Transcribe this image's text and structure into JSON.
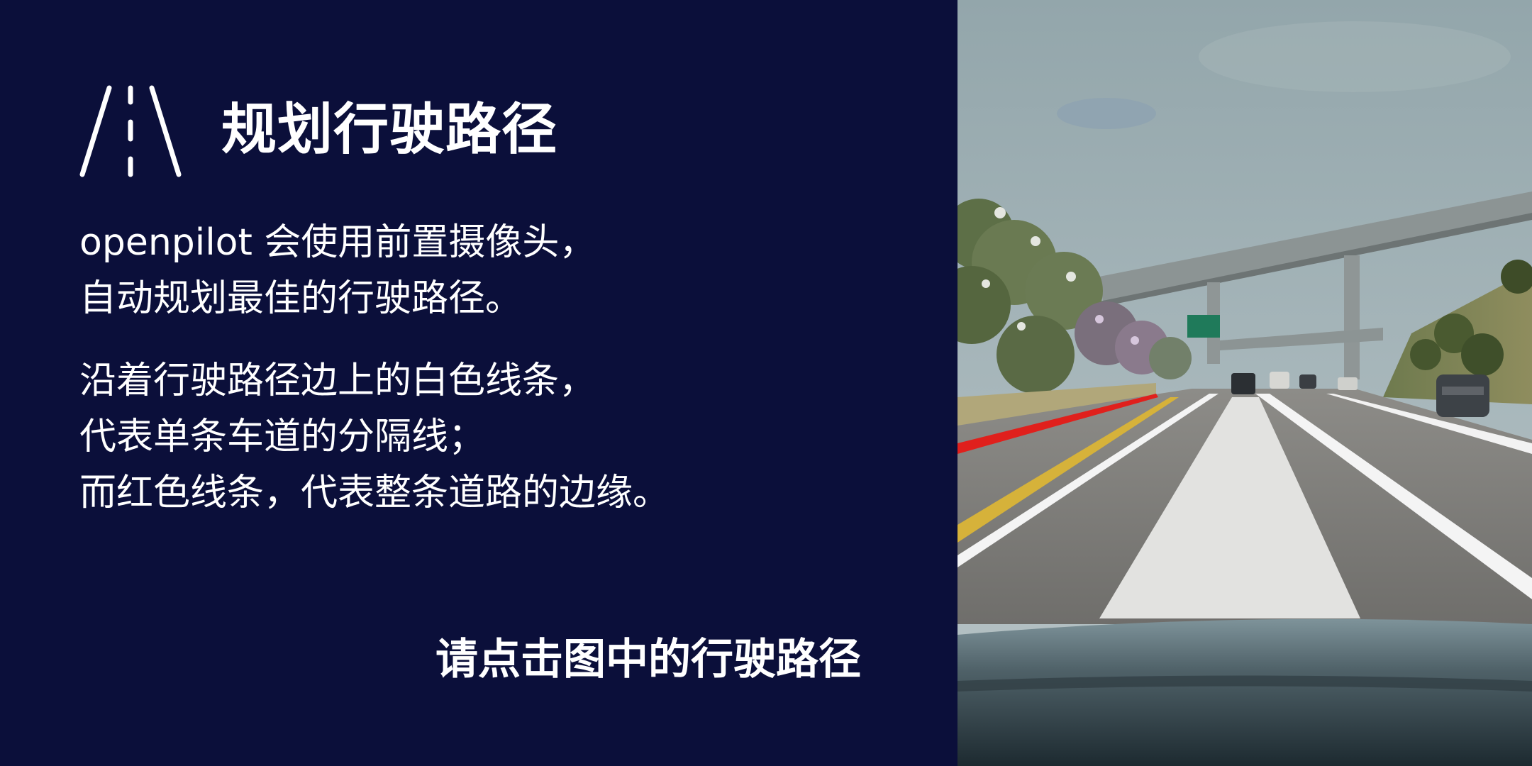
{
  "header": {
    "icon": "road-lanes-icon",
    "title": "规划行驶路径"
  },
  "body": {
    "paragraph1": [
      "openpilot 会使用前置摄像头，",
      "自动规划最佳的行驶路径。"
    ],
    "paragraph2": [
      "沿着行驶路径边上的白色线条，",
      "代表单条车道的分隔线；",
      "而红色线条，代表整条道路的边缘。"
    ]
  },
  "cta": {
    "label": "请点击图中的行驶路径"
  },
  "colors": {
    "background": "#0b0f3a",
    "text": "#ffffff",
    "lane_line": "#ffffff",
    "road_edge": "#e0201c",
    "path": "#dcdcdc"
  }
}
